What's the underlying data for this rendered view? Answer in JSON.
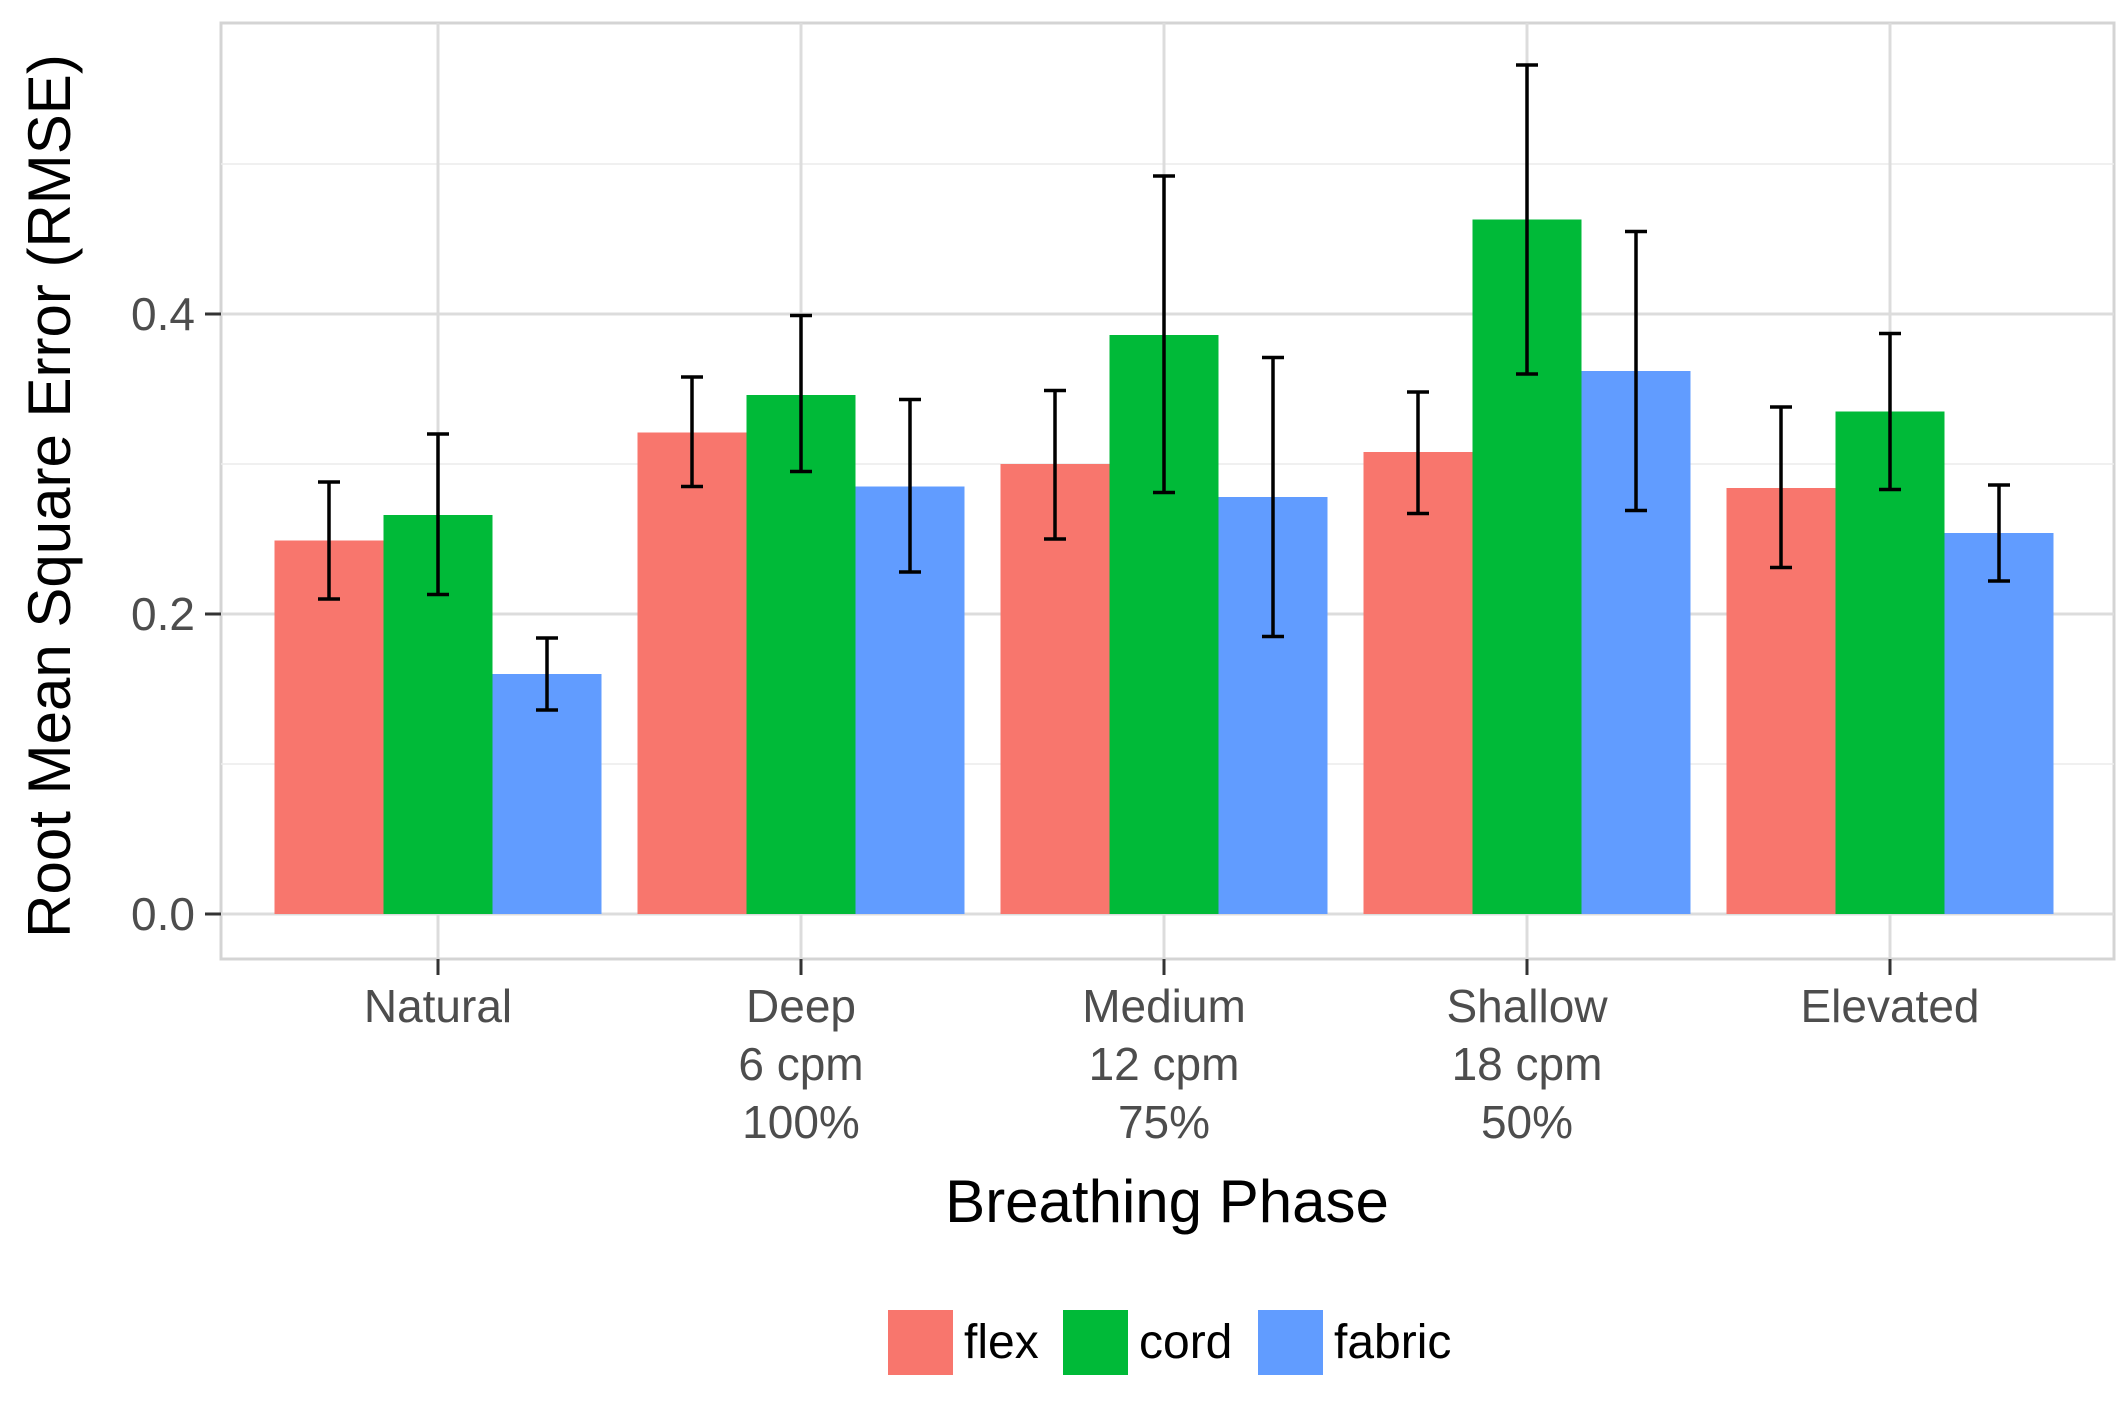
{
  "chart_data": {
    "type": "bar",
    "title": "",
    "xlabel": "Breathing Phase",
    "ylabel": "Root Mean Square Error (RMSE)",
    "ylim": [
      0,
      0.56
    ],
    "yticks": [
      "0.0",
      "0.2",
      "0.4"
    ],
    "grid": true,
    "legend_position": "bottom",
    "categories": [
      [
        "Natural"
      ],
      [
        "Deep",
        "6 cpm",
        "100%"
      ],
      [
        "Medium",
        "12 cpm",
        "75%"
      ],
      [
        "Shallow",
        "18 cpm",
        "50%"
      ],
      [
        "Elevated"
      ]
    ],
    "series": [
      {
        "name": "flex",
        "color": "#F8766D",
        "values": [
          0.249,
          0.321,
          0.3,
          0.308,
          0.284
        ],
        "error_low": [
          0.21,
          0.285,
          0.25,
          0.267,
          0.231
        ],
        "error_high": [
          0.288,
          0.358,
          0.349,
          0.348,
          0.338
        ]
      },
      {
        "name": "cord",
        "color": "#00BA38",
        "values": [
          0.266,
          0.346,
          0.386,
          0.463,
          0.335
        ],
        "error_low": [
          0.213,
          0.295,
          0.281,
          0.36,
          0.283
        ],
        "error_high": [
          0.32,
          0.399,
          0.492,
          0.566,
          0.387
        ]
      },
      {
        "name": "fabric",
        "color": "#619CFF",
        "values": [
          0.16,
          0.285,
          0.278,
          0.362,
          0.254
        ],
        "error_low": [
          0.136,
          0.228,
          0.185,
          0.269,
          0.222
        ],
        "error_high": [
          0.184,
          0.343,
          0.371,
          0.455,
          0.286
        ]
      }
    ]
  }
}
